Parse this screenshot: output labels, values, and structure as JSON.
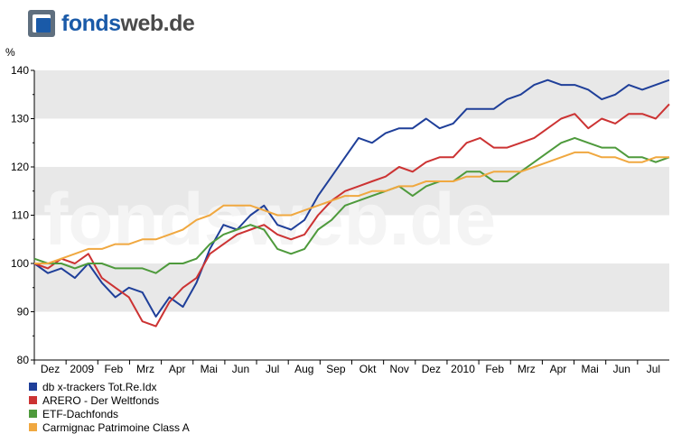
{
  "header": {
    "logo_part1": "fonds",
    "logo_part2": "web.de",
    "watermark": "fondsweb.de"
  },
  "colors": {
    "band": "#e8e8e8",
    "logo_blue": "#1a5aa8",
    "logo_gray": "#4a4a4a",
    "watermark": "#f4f4f4"
  },
  "chart_data": {
    "type": "line",
    "y_unit": "%",
    "ylim": [
      80,
      140
    ],
    "yticks": [
      80,
      90,
      100,
      110,
      120,
      130,
      140
    ],
    "grid": "alternating horizontal bands",
    "legend_position": "bottom-left",
    "x_ticks": [
      "Dez",
      "2009",
      "Feb",
      "Mrz",
      "Apr",
      "Mai",
      "Jun",
      "Jul",
      "Aug",
      "Sep",
      "Okt",
      "Nov",
      "Dez",
      "2010",
      "Feb",
      "Mrz",
      "Apr",
      "Mai",
      "Jun",
      "Jul"
    ],
    "series": [
      {
        "name": "db x-trackers Tot.Re.Idx",
        "color": "#1f3f99",
        "values": [
          100,
          98,
          99,
          97,
          100,
          96,
          93,
          95,
          94,
          89,
          93,
          91,
          96,
          103,
          108,
          107,
          110,
          112,
          108,
          107,
          109,
          114,
          118,
          122,
          126,
          125,
          127,
          128,
          128,
          130,
          128,
          129,
          132,
          132,
          132,
          134,
          135,
          137,
          138,
          137,
          137,
          136,
          134,
          135,
          137,
          136,
          137,
          138
        ]
      },
      {
        "name": "ARERO - Der Weltfonds",
        "color": "#cc3333",
        "values": [
          100,
          99,
          101,
          100,
          102,
          97,
          95,
          93,
          88,
          87,
          92,
          95,
          97,
          102,
          104,
          106,
          107,
          108,
          106,
          105,
          106,
          110,
          113,
          115,
          116,
          117,
          118,
          120,
          119,
          121,
          122,
          122,
          125,
          126,
          124,
          124,
          125,
          126,
          128,
          130,
          131,
          128,
          130,
          129,
          131,
          131,
          130,
          133
        ]
      },
      {
        "name": "ETF-Dachfonds",
        "color": "#4e9a3c",
        "values": [
          101,
          100,
          100,
          99,
          100,
          100,
          99,
          99,
          99,
          98,
          100,
          100,
          101,
          104,
          106,
          107,
          108,
          107,
          103,
          102,
          103,
          107,
          109,
          112,
          113,
          114,
          115,
          116,
          114,
          116,
          117,
          117,
          119,
          119,
          117,
          117,
          119,
          121,
          123,
          125,
          126,
          125,
          124,
          124,
          122,
          122,
          121,
          122
        ]
      },
      {
        "name": "Carmignac Patrimoine Class A",
        "color": "#f0a840",
        "values": [
          100,
          100,
          101,
          102,
          103,
          103,
          104,
          104,
          105,
          105,
          106,
          107,
          109,
          110,
          112,
          112,
          112,
          111,
          110,
          110,
          111,
          112,
          113,
          114,
          114,
          115,
          115,
          116,
          116,
          117,
          117,
          117,
          118,
          118,
          119,
          119,
          119,
          120,
          121,
          122,
          123,
          123,
          122,
          122,
          121,
          121,
          122,
          122
        ]
      }
    ]
  }
}
